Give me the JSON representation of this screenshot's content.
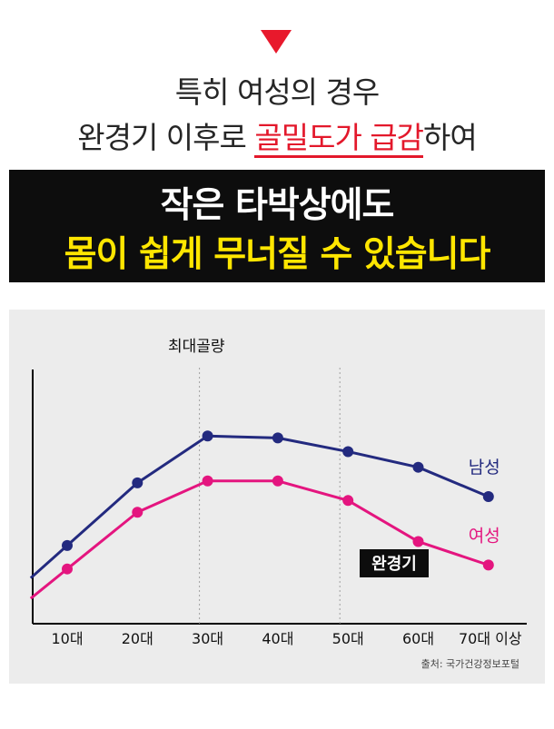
{
  "header": {
    "line1": "특히 여성의 경우",
    "line2_before": "완경기 이후로 ",
    "line2_highlight": "골밀도가 급감",
    "line2_after": "하여"
  },
  "banner": {
    "line1": "작은 타박상에도",
    "line2": "몸이 쉽게 무너질 수 있습니다"
  },
  "colors": {
    "accent_red": "#e3182b",
    "banner_yellow": "#ffe600",
    "male": "#232a7f",
    "female": "#e4157f"
  },
  "chart_data": {
    "type": "line",
    "title": "",
    "xlabel": "",
    "ylabel": "",
    "categories": [
      "10대",
      "20대",
      "30대",
      "40대",
      "50대",
      "60대",
      "70대 이상"
    ],
    "series": [
      {
        "name": "남성",
        "values": [
          40,
          72,
          96,
          95,
          88,
          80,
          65
        ]
      },
      {
        "name": "여성",
        "values": [
          28,
          57,
          73,
          73,
          63,
          42,
          30
        ]
      }
    ],
    "ylim": [
      0,
      130
    ],
    "grid": false,
    "vertical_guides": [
      "30대",
      "50대"
    ],
    "annotations": {
      "peak_label": "최대골량",
      "menopause_label": "완경기"
    },
    "source": "출처: 국가건강정보포털"
  }
}
